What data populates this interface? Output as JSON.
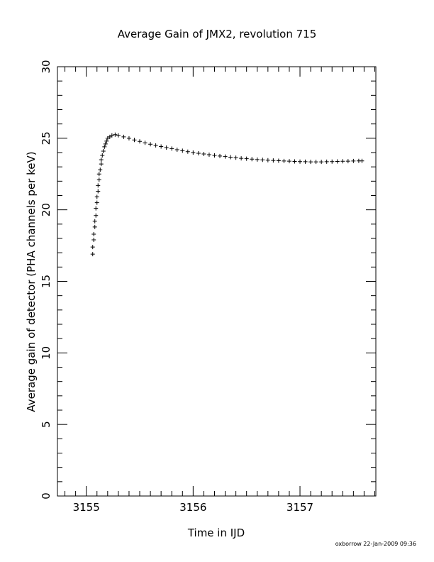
{
  "chart_data": {
    "type": "scatter",
    "title": "Average Gain of JMX2, revolution 715",
    "xlabel": "Time in IJD",
    "ylabel": "Average gain of detector (PHA channels per keV)",
    "xlim": [
      3154.73,
      3157.71
    ],
    "ylim": [
      0,
      30
    ],
    "x_ticks": [
      "3155",
      "3156",
      "3157"
    ],
    "x_tick_values": [
      3155,
      3156,
      3157
    ],
    "y_ticks": [
      "0",
      "5",
      "10",
      "15",
      "20",
      "25",
      "30"
    ],
    "y_tick_values": [
      0,
      5,
      10,
      15,
      20,
      25,
      30
    ],
    "x_minor_step": 0.1,
    "y_minor_step": 1,
    "grid": false,
    "marker": "plus",
    "series": [
      {
        "points": [
          [
            3155.06,
            16.9
          ],
          [
            3155.06,
            17.4
          ],
          [
            3155.07,
            17.9
          ],
          [
            3155.07,
            18.3
          ],
          [
            3155.08,
            18.8
          ],
          [
            3155.08,
            19.2
          ],
          [
            3155.09,
            19.6
          ],
          [
            3155.09,
            20.1
          ],
          [
            3155.1,
            20.5
          ],
          [
            3155.1,
            20.9
          ],
          [
            3155.11,
            21.3
          ],
          [
            3155.11,
            21.7
          ],
          [
            3155.12,
            22.1
          ],
          [
            3155.12,
            22.5
          ],
          [
            3155.13,
            22.8
          ],
          [
            3155.14,
            23.2
          ],
          [
            3155.14,
            23.5
          ],
          [
            3155.15,
            23.8
          ],
          [
            3155.16,
            24.1
          ],
          [
            3155.17,
            24.4
          ],
          [
            3155.18,
            24.6
          ],
          [
            3155.19,
            24.8
          ],
          [
            3155.2,
            25.0
          ],
          [
            3155.22,
            25.1
          ],
          [
            3155.24,
            25.2
          ],
          [
            3155.27,
            25.25
          ],
          [
            3155.3,
            25.2
          ],
          [
            3155.35,
            25.1
          ],
          [
            3155.4,
            25.0
          ],
          [
            3155.45,
            24.88
          ],
          [
            3155.5,
            24.78
          ],
          [
            3155.55,
            24.68
          ],
          [
            3155.6,
            24.58
          ],
          [
            3155.65,
            24.5
          ],
          [
            3155.7,
            24.42
          ],
          [
            3155.75,
            24.35
          ],
          [
            3155.8,
            24.28
          ],
          [
            3155.85,
            24.2
          ],
          [
            3155.9,
            24.13
          ],
          [
            3155.95,
            24.06
          ],
          [
            3156.0,
            24.0
          ],
          [
            3156.05,
            23.95
          ],
          [
            3156.1,
            23.9
          ],
          [
            3156.15,
            23.85
          ],
          [
            3156.2,
            23.8
          ],
          [
            3156.25,
            23.76
          ],
          [
            3156.3,
            23.72
          ],
          [
            3156.35,
            23.68
          ],
          [
            3156.4,
            23.64
          ],
          [
            3156.45,
            23.6
          ],
          [
            3156.5,
            23.57
          ],
          [
            3156.55,
            23.54
          ],
          [
            3156.6,
            23.51
          ],
          [
            3156.65,
            23.49
          ],
          [
            3156.7,
            23.47
          ],
          [
            3156.75,
            23.45
          ],
          [
            3156.8,
            23.43
          ],
          [
            3156.85,
            23.41
          ],
          [
            3156.9,
            23.4
          ],
          [
            3156.95,
            23.38
          ],
          [
            3157.0,
            23.37
          ],
          [
            3157.05,
            23.36
          ],
          [
            3157.1,
            23.35
          ],
          [
            3157.15,
            23.35
          ],
          [
            3157.2,
            23.35
          ],
          [
            3157.25,
            23.36
          ],
          [
            3157.3,
            23.37
          ],
          [
            3157.35,
            23.38
          ],
          [
            3157.4,
            23.39
          ],
          [
            3157.45,
            23.4
          ],
          [
            3157.5,
            23.41
          ],
          [
            3157.55,
            23.42
          ],
          [
            3157.58,
            23.42
          ]
        ]
      }
    ]
  },
  "footer": {
    "credit": "oxborrow 22-Jan-2009 09:36"
  }
}
